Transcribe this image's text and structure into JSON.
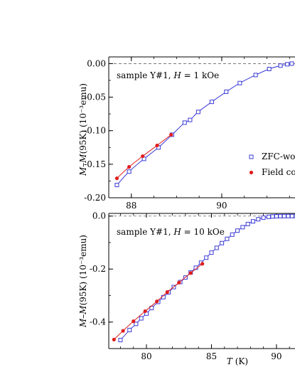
{
  "chart_data": [
    {
      "type": "line",
      "annotation": "sample Y#1, H = 1 kOe",
      "xlabel": "",
      "ylabel": "M–M(95K) (10⁻³emu)",
      "xlim": [
        87.5,
        91.7
      ],
      "ylim": [
        -0.2,
        0.01
      ],
      "x_ticks": [
        "88",
        "90"
      ],
      "y_ticks": [
        "0.00",
        "-0.05",
        "-0.10",
        "-0.15",
        "-0.20"
      ],
      "reference_line_y": 0,
      "legend": [
        "ZFC-wo",
        "Field co"
      ],
      "colors": {
        "zfc": "#3b3bd6",
        "fc": "#e01e1e",
        "reference": "#666666"
      },
      "series": [
        {
          "name": "ZFC-wo",
          "marker": "open-square",
          "x": [
            87.68,
            87.95,
            88.28,
            88.6,
            88.9,
            89.18,
            89.3,
            89.48,
            89.78,
            90.1,
            90.4,
            90.75,
            91.05,
            91.3,
            91.45,
            91.55
          ],
          "y": [
            -0.181,
            -0.161,
            -0.142,
            -0.125,
            -0.106,
            -0.088,
            -0.084,
            -0.072,
            -0.057,
            -0.042,
            -0.029,
            -0.017,
            -0.008,
            -0.003,
            -0.001,
            0.0
          ]
        },
        {
          "name": "Field co",
          "marker": "filled-circle",
          "x": [
            87.68,
            87.95,
            88.25,
            88.57,
            88.88
          ],
          "y": [
            -0.171,
            -0.154,
            -0.138,
            -0.122,
            -0.106
          ]
        }
      ]
    },
    {
      "type": "line",
      "annotation": "sample Y#1, H = 10 kOe",
      "xlabel": "T (K)",
      "ylabel": "M–M(95K) (10⁻³emu)",
      "xlim": [
        77.1,
        91.7
      ],
      "ylim": [
        -0.5,
        0.01
      ],
      "x_ticks": [
        "80",
        "85",
        "90"
      ],
      "y_ticks": [
        "0.0",
        "-0.2",
        "-0.4"
      ],
      "reference_line_y": 0,
      "colors": {
        "zfc": "#3b3bd6",
        "fc": "#e01e1e",
        "reference": "#666666"
      },
      "series": [
        {
          "name": "ZFC-wo",
          "marker": "open-square",
          "x": [
            78.0,
            78.7,
            79.2,
            79.6,
            80.0,
            80.4,
            80.9,
            81.3,
            81.7,
            82.1,
            82.6,
            83.0,
            83.4,
            83.8,
            84.2,
            84.6,
            85.0,
            85.4,
            85.8,
            86.2,
            86.6,
            87.0,
            87.4,
            87.8,
            88.2,
            88.6,
            89.0,
            89.4,
            89.7,
            90.0,
            90.3,
            90.6,
            90.9,
            91.2,
            91.5
          ],
          "y": [
            -0.468,
            -0.43,
            -0.407,
            -0.386,
            -0.368,
            -0.347,
            -0.324,
            -0.306,
            -0.288,
            -0.268,
            -0.249,
            -0.232,
            -0.213,
            -0.195,
            -0.176,
            -0.157,
            -0.138,
            -0.12,
            -0.102,
            -0.086,
            -0.07,
            -0.055,
            -0.042,
            -0.03,
            -0.02,
            -0.012,
            -0.006,
            -0.003,
            -0.0015,
            -0.0008,
            -0.0004,
            -0.0002,
            0.0,
            0.0,
            0.0
          ]
        },
        {
          "name": "Field co",
          "marker": "filled-circle",
          "x": [
            77.5,
            78.2,
            79.0,
            79.9,
            80.8,
            81.6,
            82.5,
            83.4,
            84.3
          ],
          "y": [
            -0.466,
            -0.433,
            -0.397,
            -0.359,
            -0.322,
            -0.287,
            -0.251,
            -0.215,
            -0.18
          ]
        }
      ]
    }
  ]
}
